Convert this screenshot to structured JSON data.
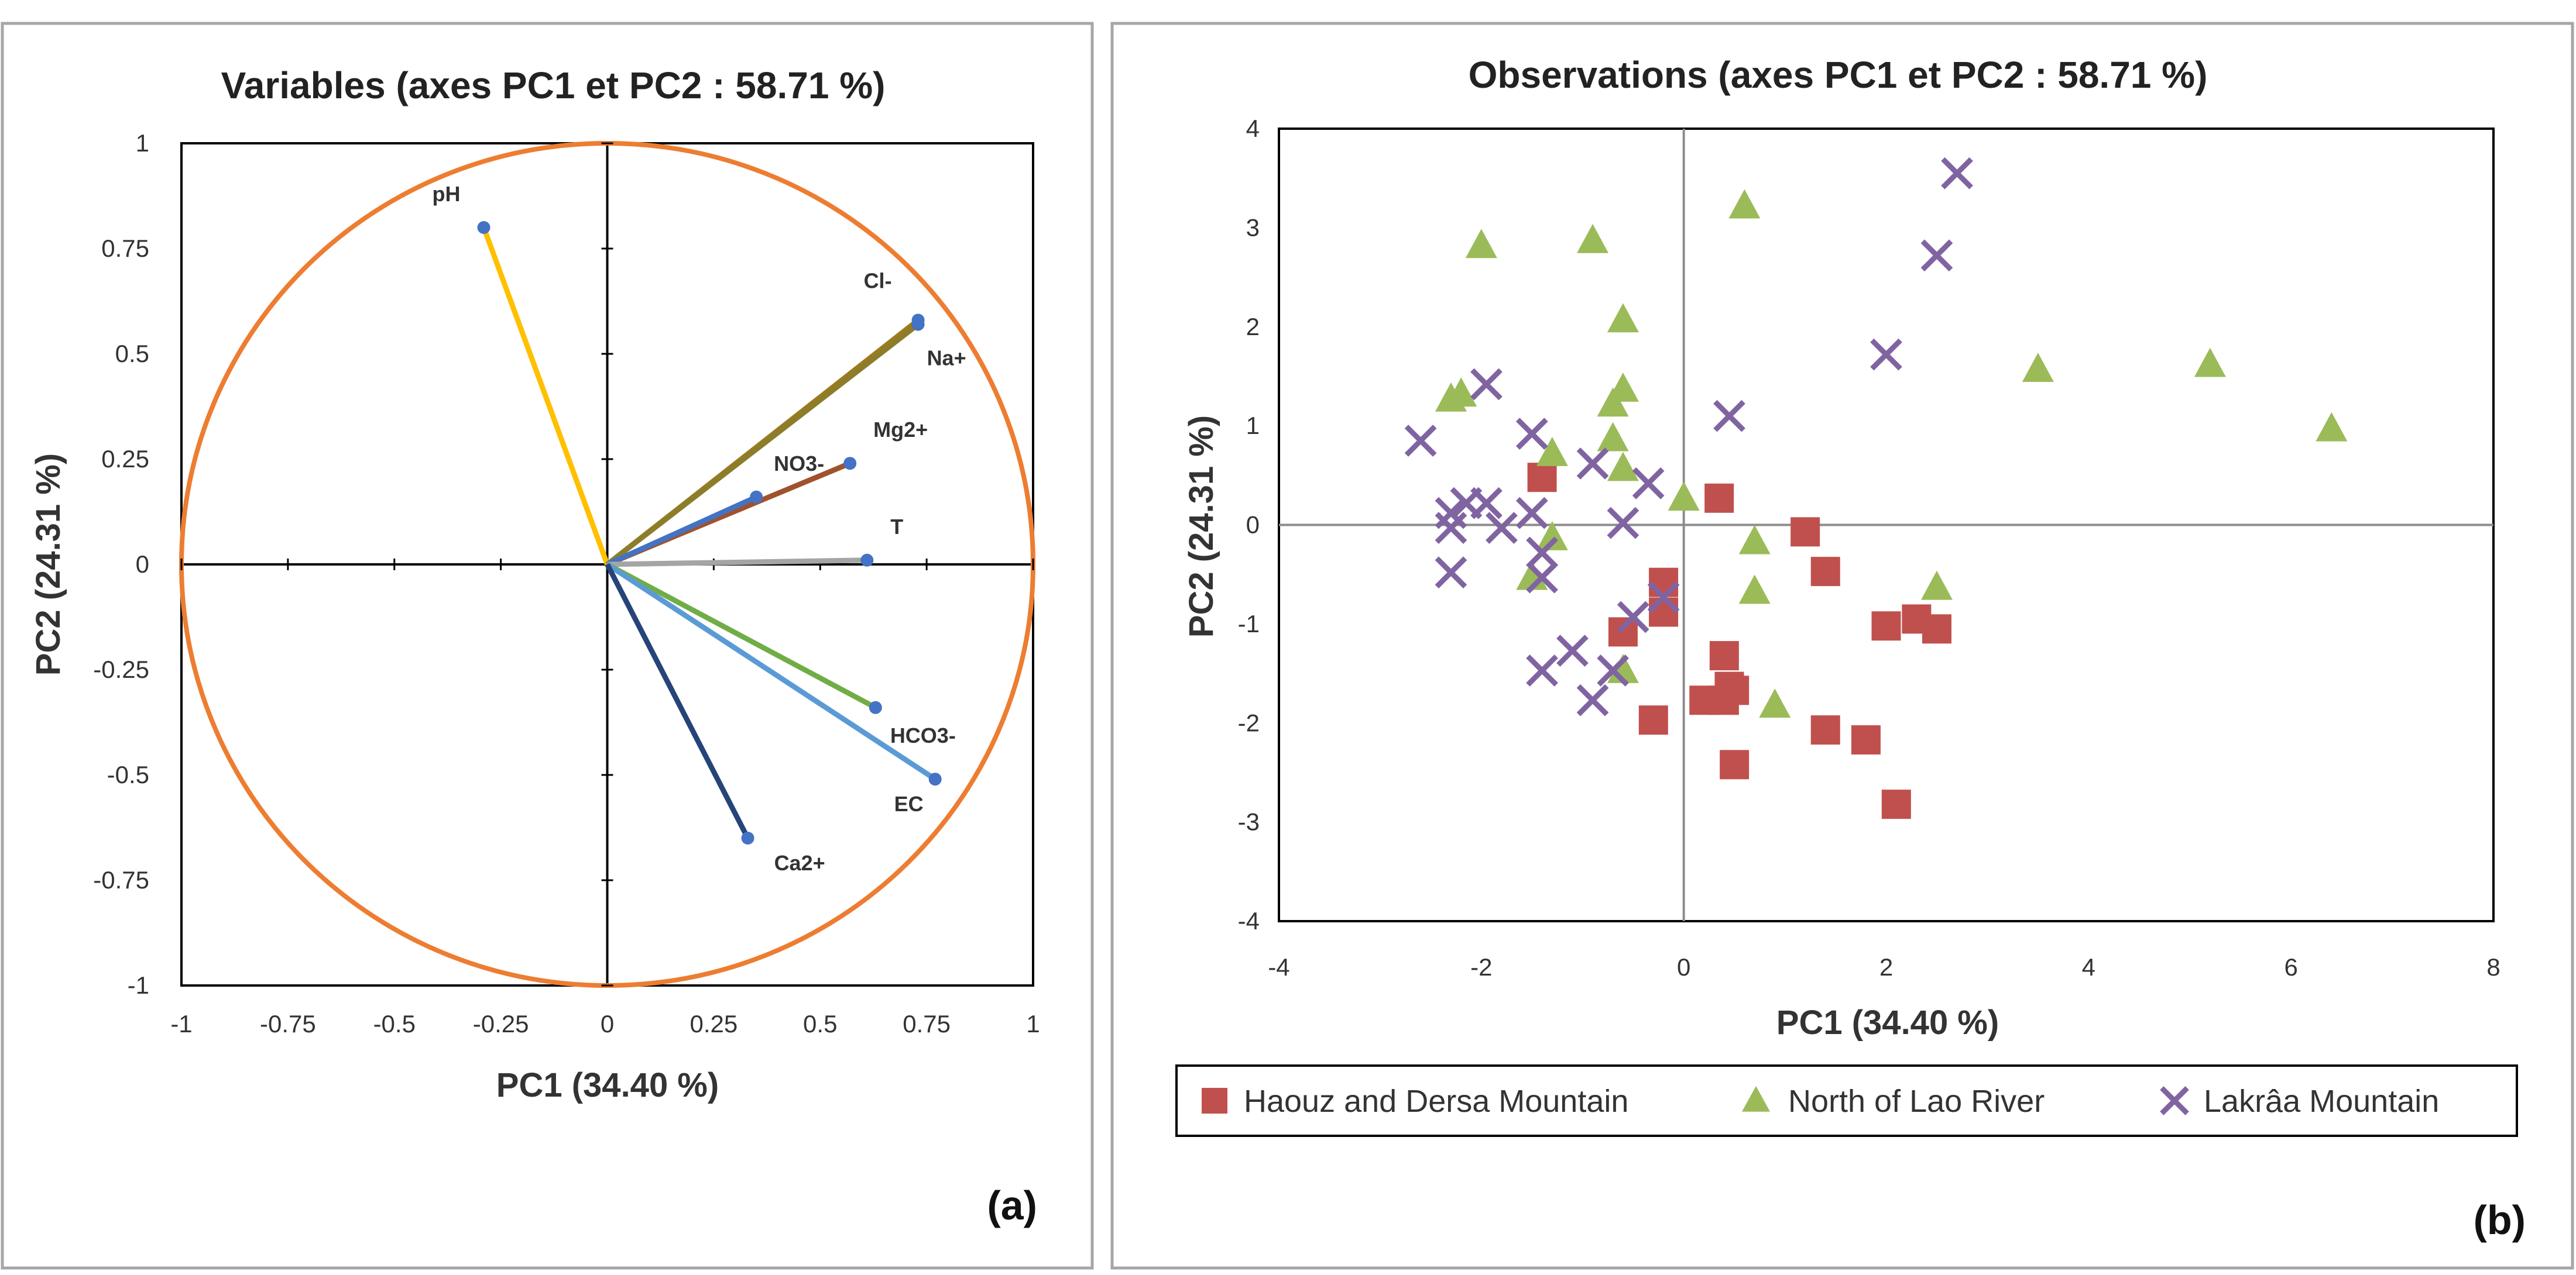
{
  "chart_data": [
    {
      "panel": "(a)",
      "type": "scatter",
      "subtype": "correlation-circle",
      "title": "Variables (axes PC1 et PC2 : 58.71 %)",
      "xlabel": "PC1 (34.40 %)",
      "ylabel": "PC2 (24.31 %)",
      "xlim": [
        -1,
        1
      ],
      "ylim": [
        -1,
        1
      ],
      "xticks": [
        "-1",
        "-0.75",
        "-0.5",
        "-0.25",
        "0",
        "0.25",
        "0.5",
        "0.75",
        "1"
      ],
      "yticks": [
        "1",
        "0.75",
        "0.5",
        "0.25",
        "0",
        "-0.25",
        "-0.5",
        "-0.75",
        "-1"
      ],
      "circle_color": "#ED7D31",
      "vectors": [
        {
          "name": "pH",
          "x": -0.29,
          "y": 0.8,
          "color": "#FFC000"
        },
        {
          "name": "Cl-",
          "x": 0.73,
          "y": 0.58,
          "color": "#9C7A1E"
        },
        {
          "name": "Na+",
          "x": 0.73,
          "y": 0.57,
          "color": "#8B7D2A"
        },
        {
          "name": "Mg2+",
          "x": 0.57,
          "y": 0.24,
          "color": "#A0522D"
        },
        {
          "name": "NO3-",
          "x": 0.35,
          "y": 0.16,
          "color": "#4472C4"
        },
        {
          "name": "T",
          "x": 0.61,
          "y": 0.01,
          "color": "#A5A5A5"
        },
        {
          "name": "HCO3-",
          "x": 0.63,
          "y": -0.34,
          "color": "#70AD47"
        },
        {
          "name": "EC",
          "x": 0.77,
          "y": -0.51,
          "color": "#5B9BD5"
        },
        {
          "name": "Ca2+",
          "x": 0.33,
          "y": -0.65,
          "color": "#264478"
        }
      ],
      "labels": [
        "pH",
        "Cl-",
        "Na+",
        "Mg2+",
        "NO3-",
        "T",
        "HCO3-",
        "EC",
        "Ca2+"
      ]
    },
    {
      "panel": "(b)",
      "type": "scatter",
      "title": "Observations (axes PC1 et PC2 : 58.71 %)",
      "xlabel": "PC1 (34.40 %)",
      "ylabel": "PC2 (24.31 %)",
      "xlim": [
        -4,
        8
      ],
      "ylim": [
        -4,
        4
      ],
      "xticks": [
        "-4",
        "-2",
        "0",
        "2",
        "4",
        "6",
        "8"
      ],
      "yticks": [
        "4",
        "3",
        "2",
        "1",
        "0",
        "-1",
        "-2",
        "-3",
        "-4"
      ],
      "legend_position": "bottom",
      "series": [
        {
          "name": "Haouz and Dersa Mountain",
          "marker": "square",
          "color": "#C0504D",
          "points": [
            [
              -1.4,
              0.48
            ],
            [
              0.35,
              0.27
            ],
            [
              1.2,
              -0.07
            ],
            [
              1.4,
              -0.47
            ],
            [
              -0.2,
              -0.58
            ],
            [
              -0.2,
              -0.88
            ],
            [
              -0.6,
              -1.08
            ],
            [
              2.0,
              -1.02
            ],
            [
              2.3,
              -0.95
            ],
            [
              2.5,
              -1.05
            ],
            [
              0.4,
              -1.32
            ],
            [
              0.45,
              -1.63
            ],
            [
              0.5,
              -1.67
            ],
            [
              0.2,
              -1.77
            ],
            [
              0.4,
              -1.77
            ],
            [
              -0.3,
              -1.97
            ],
            [
              1.4,
              -2.07
            ],
            [
              1.8,
              -2.17
            ],
            [
              0.5,
              -2.42
            ],
            [
              2.1,
              -2.82
            ]
          ]
        },
        {
          "name": "North of Lao River",
          "marker": "triangle",
          "color": "#9BBB59",
          "points": [
            [
              0.6,
              3.22
            ],
            [
              -2.0,
              2.82
            ],
            [
              -0.9,
              2.87
            ],
            [
              -0.6,
              2.07
            ],
            [
              -0.6,
              1.37
            ],
            [
              -0.7,
              1.22
            ],
            [
              -2.3,
              1.27
            ],
            [
              -2.2,
              1.32
            ],
            [
              3.5,
              1.57
            ],
            [
              5.2,
              1.62
            ],
            [
              6.4,
              0.97
            ],
            [
              -1.3,
              0.72
            ],
            [
              -0.7,
              0.87
            ],
            [
              -0.6,
              0.57
            ],
            [
              0.0,
              0.27
            ],
            [
              -1.3,
              -0.13
            ],
            [
              -1.5,
              -0.53
            ],
            [
              0.7,
              -0.17
            ],
            [
              0.7,
              -0.67
            ],
            [
              2.5,
              -0.63
            ],
            [
              -0.6,
              -1.47
            ],
            [
              0.9,
              -1.82
            ]
          ]
        },
        {
          "name": "Lakrâa Mountain",
          "marker": "x",
          "color": "#8064A2",
          "points": [
            [
              2.7,
              3.55
            ],
            [
              2.5,
              2.72
            ],
            [
              2.0,
              1.72
            ],
            [
              0.45,
              1.1
            ],
            [
              -2.6,
              0.85
            ],
            [
              -1.95,
              1.42
            ],
            [
              -1.5,
              0.92
            ],
            [
              -0.9,
              0.62
            ],
            [
              -0.35,
              0.42
            ],
            [
              -2.3,
              0.12
            ],
            [
              -2.15,
              0.22
            ],
            [
              -1.95,
              0.22
            ],
            [
              -2.3,
              -0.03
            ],
            [
              -1.8,
              -0.03
            ],
            [
              -1.5,
              0.12
            ],
            [
              -0.6,
              0.02
            ],
            [
              -1.4,
              -0.28
            ],
            [
              -1.4,
              -0.53
            ],
            [
              -2.3,
              -0.48
            ],
            [
              -0.2,
              -0.73
            ],
            [
              -0.5,
              -0.93
            ],
            [
              -1.1,
              -1.27
            ],
            [
              -1.4,
              -1.47
            ],
            [
              -0.7,
              -1.47
            ],
            [
              -0.9,
              -1.77
            ]
          ]
        }
      ]
    }
  ]
}
